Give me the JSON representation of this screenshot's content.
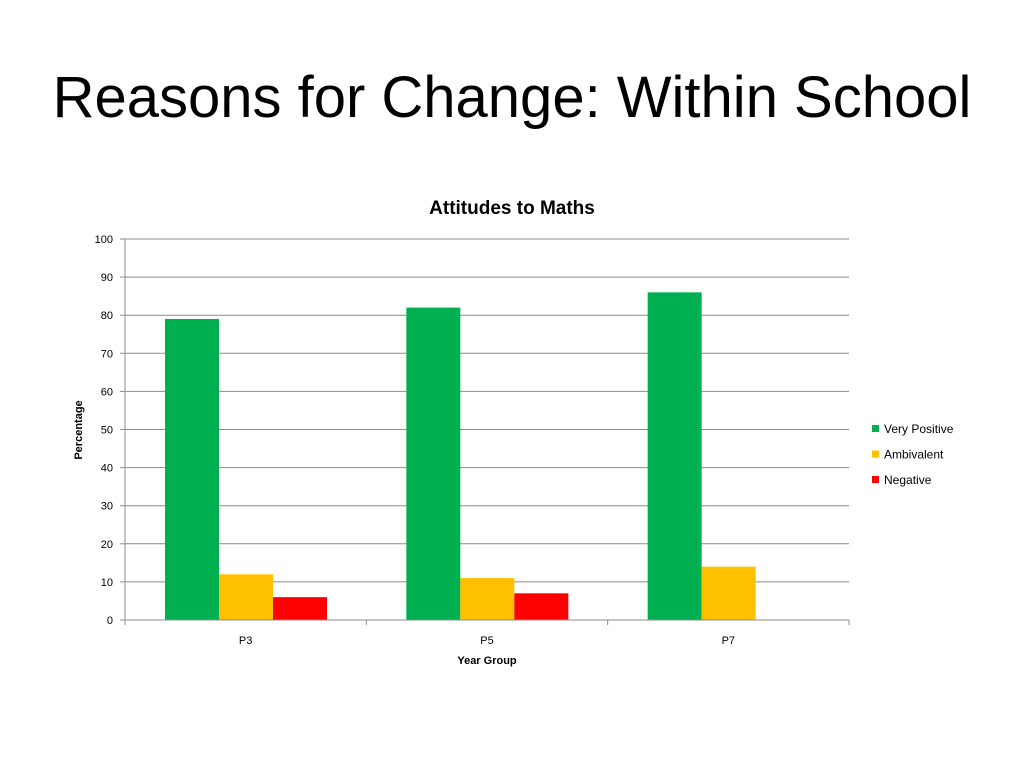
{
  "slide": {
    "title": "Reasons for Change: Within School"
  },
  "chart_data": {
    "type": "bar",
    "title": "Attitudes to Maths",
    "xlabel": "Year Group",
    "ylabel": "Percentage",
    "categories": [
      "P3",
      "P5",
      "P7"
    ],
    "series": [
      {
        "name": "Very Positive",
        "values": [
          79,
          82,
          86
        ],
        "color": "#00b050"
      },
      {
        "name": "Ambivalent",
        "values": [
          12,
          11,
          14
        ],
        "color": "#ffc000"
      },
      {
        "name": "Negative",
        "values": [
          6,
          7,
          0
        ],
        "color": "#ff0000"
      }
    ],
    "ylim": [
      0,
      100
    ],
    "yticks": [
      0,
      10,
      20,
      30,
      40,
      50,
      60,
      70,
      80,
      90,
      100
    ],
    "grid": true,
    "legend": "right"
  }
}
